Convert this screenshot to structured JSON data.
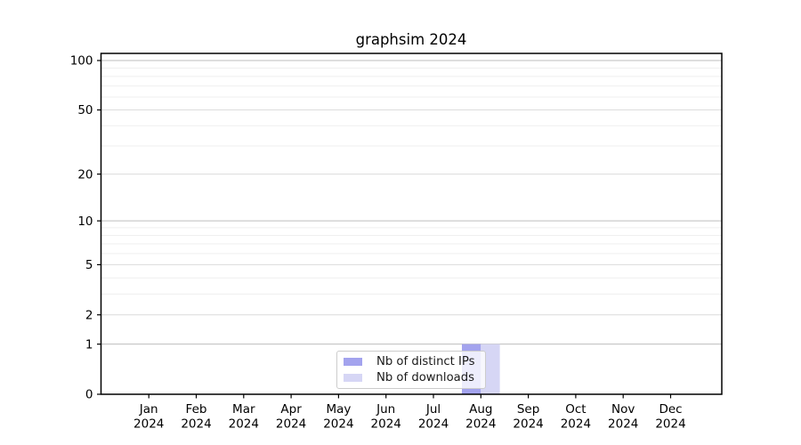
{
  "chart_data": {
    "type": "bar",
    "title": "graphsim 2024",
    "categories": [
      "Jan 2024",
      "Feb 2024",
      "Mar 2024",
      "Apr 2024",
      "May 2024",
      "Jun 2024",
      "Jul 2024",
      "Aug 2024",
      "Sep 2024",
      "Oct 2024",
      "Nov 2024",
      "Dec 2024"
    ],
    "series": [
      {
        "name": "Nb of distinct IPs",
        "color": "#a3a3ee",
        "values": [
          0,
          0,
          0,
          0,
          0,
          0,
          0,
          1,
          0,
          0,
          0,
          0
        ]
      },
      {
        "name": "Nb of downloads",
        "color": "#d6d6f5",
        "values": [
          0,
          0,
          0,
          0,
          0,
          0,
          0,
          1,
          0,
          0,
          0,
          0
        ]
      }
    ],
    "xlabel": "",
    "ylabel": "",
    "yscale": "log10(1+y)",
    "ylim": [
      0,
      110
    ],
    "y_ticks": [
      100,
      50,
      20,
      10,
      5,
      2,
      1,
      0
    ],
    "y_minor_ticks": [
      3,
      4,
      6,
      7,
      8,
      9,
      30,
      40,
      60,
      70,
      80,
      90
    ],
    "grid": "horizontal",
    "legend_position": "lower center",
    "colors": {
      "grid_decade": "#bdbdbd",
      "grid_labeled": "#dcdcdc",
      "grid_minor": "#efefef",
      "axis": "#000000",
      "tick_text": "#000000",
      "background": "#ffffff"
    }
  }
}
